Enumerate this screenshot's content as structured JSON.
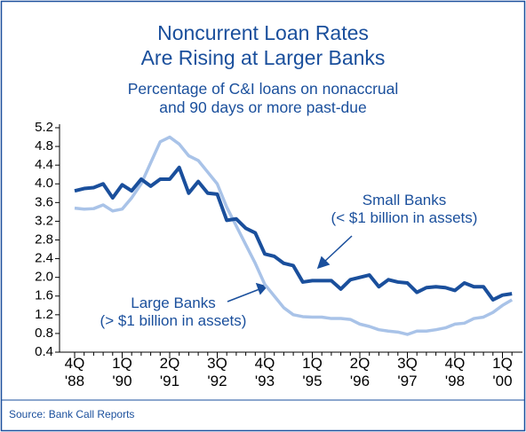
{
  "chart_data": {
    "type": "line",
    "title": "Noncurrent Loan Rates\nAre Rising at Larger Banks",
    "subtitle": "Percentage of C&I loans on nonaccrual\nand 90 days or more past-due",
    "source": "Source: Bank Call Reports",
    "categories": [
      "4Q\n'88",
      null,
      null,
      null,
      null,
      "1Q\n'90",
      null,
      null,
      null,
      null,
      "2Q\n'91",
      null,
      null,
      null,
      null,
      "3Q\n'92",
      null,
      null,
      null,
      null,
      "4Q\n'93",
      null,
      null,
      null,
      null,
      "1Q\n'95",
      null,
      null,
      null,
      null,
      "2Q\n'96",
      null,
      null,
      null,
      null,
      "3Q\n'97",
      null,
      null,
      null,
      null,
      "4Q\n'98",
      null,
      null,
      null,
      null,
      "1Q\n'00",
      null
    ],
    "series": [
      {
        "name": "Small Banks\n(< $1 billion in assets)",
        "color": "#1a4f9c",
        "values": [
          3.85,
          3.9,
          3.92,
          4.0,
          3.7,
          3.98,
          3.85,
          4.1,
          3.95,
          4.1,
          4.1,
          4.35,
          3.8,
          4.05,
          3.8,
          3.78,
          3.22,
          3.25,
          3.05,
          2.95,
          2.5,
          2.45,
          2.3,
          2.25,
          1.9,
          1.93,
          1.93,
          1.93,
          1.75,
          1.95,
          2.0,
          2.05,
          1.8,
          1.95,
          1.9,
          1.88,
          1.68,
          1.78,
          1.8,
          1.78,
          1.72,
          1.88,
          1.8,
          1.8,
          1.52,
          1.62,
          1.65
        ]
      },
      {
        "name": "Large Banks\n(> $1 billion in assets)",
        "color": "#a9c3e8",
        "values": [
          3.48,
          3.46,
          3.47,
          3.55,
          3.42,
          3.46,
          3.7,
          4.0,
          4.45,
          4.9,
          5.0,
          4.85,
          4.6,
          4.5,
          4.25,
          4.0,
          3.5,
          3.1,
          2.7,
          2.3,
          1.85,
          1.6,
          1.35,
          1.2,
          1.16,
          1.15,
          1.15,
          1.12,
          1.12,
          1.1,
          1.0,
          0.95,
          0.88,
          0.85,
          0.83,
          0.78,
          0.85,
          0.85,
          0.88,
          0.92,
          1.0,
          1.02,
          1.12,
          1.15,
          1.25,
          1.4,
          1.52
        ]
      }
    ],
    "ylim": [
      0.4,
      5.2
    ],
    "yticks": [
      0.4,
      0.8,
      1.2,
      1.6,
      {
        "value": 2,
        "label": "2.0"
      },
      2.4,
      2.8,
      3.2,
      3.6,
      {
        "value": 4,
        "label": "4.0"
      },
      4.4,
      4.8,
      5.2
    ]
  }
}
